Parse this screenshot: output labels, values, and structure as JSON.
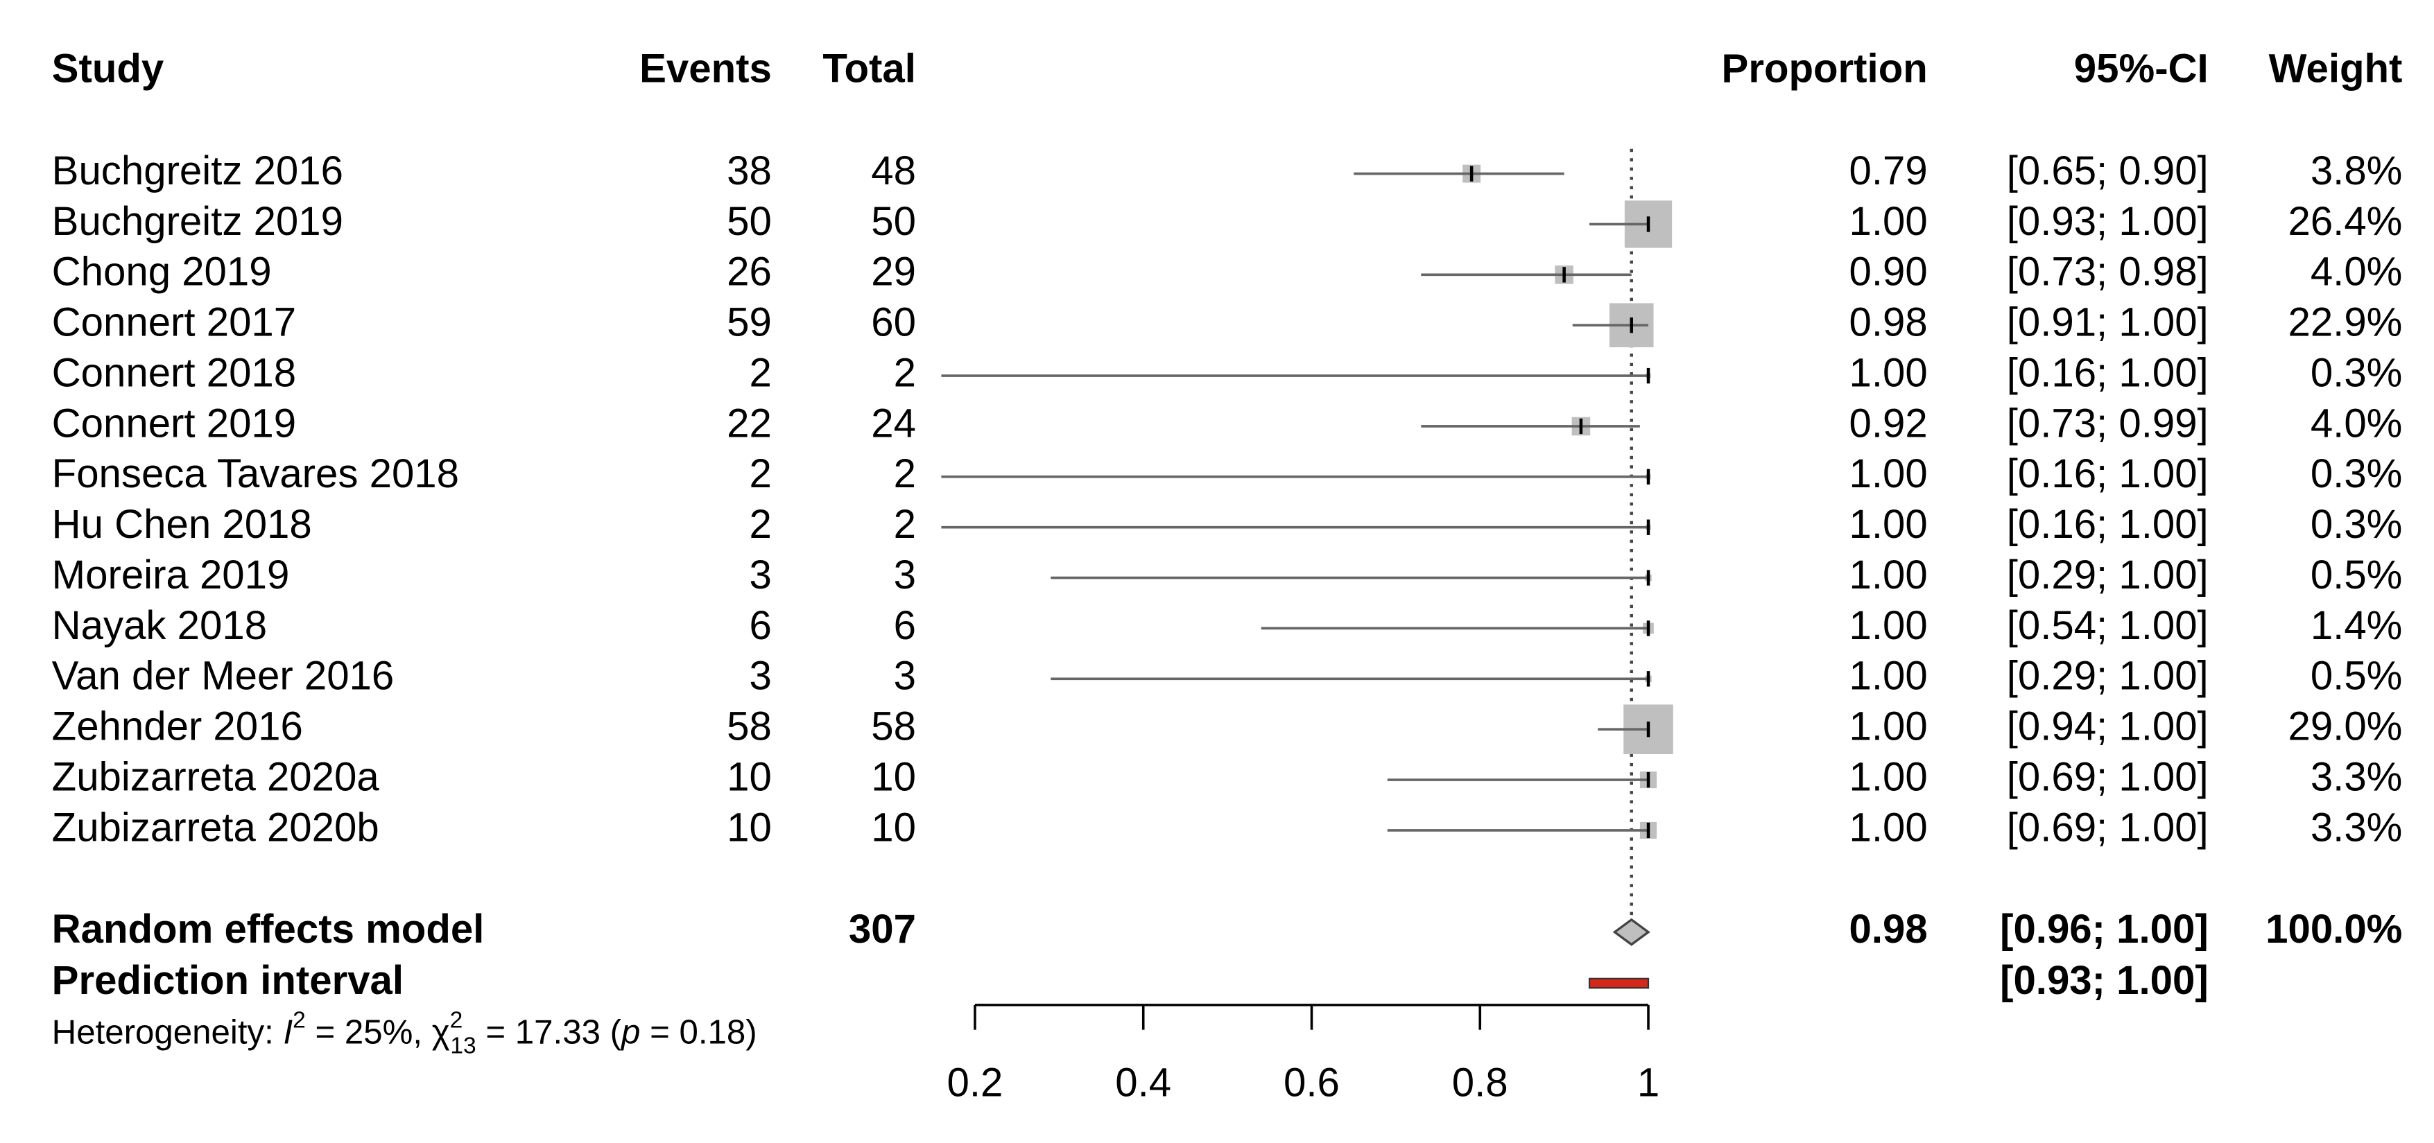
{
  "chart_data": {
    "type": "forest",
    "columns": [
      "Study",
      "Events",
      "Total",
      "Proportion",
      "95%-CI",
      "Weight"
    ],
    "studies": [
      "Buchgreitz 2016",
      "Buchgreitz 2019",
      "Chong 2019",
      "Connert 2017",
      "Connert 2018",
      "Connert 2019",
      "Fonseca Tavares 2018",
      "Hu Chen 2018",
      "Moreira 2019",
      "Nayak 2018",
      "Van der Meer 2016",
      "Zehnder 2016",
      "Zubizarreta 2020a",
      "Zubizarreta 2020b"
    ],
    "events": [
      38,
      50,
      26,
      59,
      2,
      22,
      2,
      2,
      3,
      6,
      3,
      58,
      10,
      10
    ],
    "totals": [
      48,
      50,
      29,
      60,
      2,
      24,
      2,
      2,
      3,
      6,
      3,
      58,
      10,
      10
    ],
    "proportions": [
      0.79,
      1,
      0.9,
      0.98,
      1,
      0.92,
      1,
      1,
      1,
      1,
      1,
      1,
      1,
      1
    ],
    "proportion_labels": [
      "0.79",
      "1.00",
      "0.90",
      "0.98",
      "1.00",
      "0.92",
      "1.00",
      "1.00",
      "1.00",
      "1.00",
      "1.00",
      "1.00",
      "1.00",
      "1.00"
    ],
    "ci_lower": [
      0.65,
      0.93,
      0.73,
      0.91,
      0.16,
      0.73,
      0.16,
      0.16,
      0.29,
      0.54,
      0.29,
      0.94,
      0.69,
      0.69
    ],
    "ci_upper": [
      0.9,
      1,
      0.98,
      1,
      1,
      0.99,
      1,
      1,
      1,
      1,
      1,
      1,
      1,
      1
    ],
    "ci_labels": [
      "[0.65; 0.90]",
      "[0.93; 1.00]",
      "[0.73; 0.98]",
      "[0.91; 1.00]",
      "[0.16; 1.00]",
      "[0.73; 0.99]",
      "[0.16; 1.00]",
      "[0.16; 1.00]",
      "[0.29; 1.00]",
      "[0.54; 1.00]",
      "[0.29; 1.00]",
      "[0.94; 1.00]",
      "[0.69; 1.00]",
      "[0.69; 1.00]"
    ],
    "weights": [
      3.8,
      26.4,
      4.0,
      22.9,
      0.3,
      4.0,
      0.3,
      0.3,
      0.5,
      1.4,
      0.5,
      29.0,
      3.3,
      3.3
    ],
    "weight_labels": [
      "3.8%",
      "26.4%",
      "4.0%",
      "22.9%",
      "0.3%",
      "4.0%",
      "0.3%",
      "0.3%",
      "0.5%",
      "1.4%",
      "0.5%",
      "29.0%",
      "3.3%",
      "3.3%"
    ],
    "summary": {
      "label": "Random effects model",
      "total": 307,
      "proportion": 0.98,
      "proportion_label": "0.98",
      "ci_lower": 0.96,
      "ci_upper": 1,
      "ci_label": "[0.96; 1.00]",
      "weight": 100,
      "weight_label": "100.0%"
    },
    "prediction": {
      "label": "Prediction interval",
      "lower": 0.93,
      "upper": 1,
      "ci_label": "[0.93; 1.00]",
      "color": "#d62818"
    },
    "heterogeneity": [
      {
        "text": "Heterogeneity: ",
        "style": "normal"
      },
      {
        "text": "I",
        "style": "italic"
      },
      {
        "text": "2",
        "style": "sup"
      },
      {
        "text": " = 25%, ",
        "style": "normal"
      },
      {
        "text": "χ",
        "style": "normal"
      },
      {
        "text": "2",
        "style": "sup"
      },
      {
        "text": "13",
        "style": "sub"
      },
      {
        "text": " = 17.33 (",
        "style": "normal"
      },
      {
        "text": "p",
        "style": "italic"
      },
      {
        "text": " = 0.18)",
        "style": "normal"
      }
    ],
    "xlim": [
      0.2,
      1
    ],
    "xticks": [
      0.2,
      0.4,
      0.6,
      0.8,
      1
    ],
    "square_color": "#bfbfbf",
    "line_color": "#666666"
  }
}
